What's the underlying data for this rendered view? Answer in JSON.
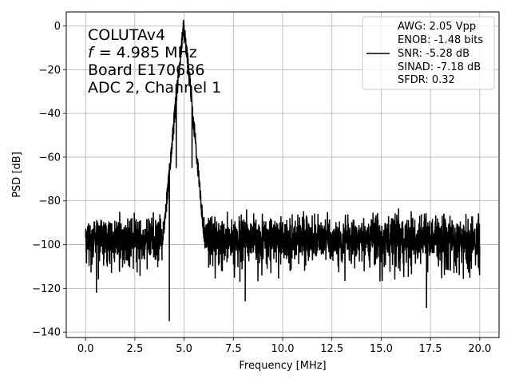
{
  "chart_data": {
    "type": "line",
    "xlabel": "Frequency [MHz]",
    "ylabel": "PSD [dB]",
    "xlim": [
      -0.98,
      20.98
    ],
    "ylim": [
      -142.5,
      6.4
    ],
    "xticks": [
      0.0,
      2.5,
      5.0,
      7.5,
      10.0,
      12.5,
      15.0,
      17.5,
      20.0
    ],
    "xtick_labels": [
      "0.0",
      "2.5",
      "5.0",
      "7.5",
      "10.0",
      "12.5",
      "15.0",
      "17.5",
      "20.0"
    ],
    "yticks": [
      0,
      -20,
      -40,
      -60,
      -80,
      -100,
      -120,
      -140
    ],
    "ytick_labels": [
      "0",
      "−20",
      "−40",
      "−60",
      "−80",
      "−100",
      "−120",
      "−140"
    ],
    "grid": true,
    "annotation": [
      "COLUTAv4",
      "= 4.985 MHz",
      "Board E170686",
      "ADC 2, Channel 1"
    ],
    "annotation_f_symbol": "f",
    "legend_placement": "upper right",
    "legend": [
      "AWG: 2.05 Vpp",
      "ENOB: -1.48 bits",
      "SNR: -5.28 dB",
      "SINAD: -7.18 dB",
      "SFDR: 0.32"
    ],
    "series": [
      {
        "color": "#000000",
        "peak": {
          "x": 4.985,
          "y": 0
        },
        "noise_floor_mean": -98,
        "noise_floor_range": [
          -112,
          -88
        ],
        "x_range": [
          0.0,
          20.0
        ],
        "notable_points": [
          {
            "x": 0.55,
            "y": -122
          },
          {
            "x": 4.25,
            "y": -135
          },
          {
            "x": 8.1,
            "y": -126
          },
          {
            "x": 17.3,
            "y": -129
          },
          {
            "x": 19.3,
            "y": -86
          },
          {
            "x": 5.0,
            "y": -8
          },
          {
            "x": 4.6,
            "y": -65
          },
          {
            "x": 5.4,
            "y": -65
          }
        ]
      }
    ]
  }
}
